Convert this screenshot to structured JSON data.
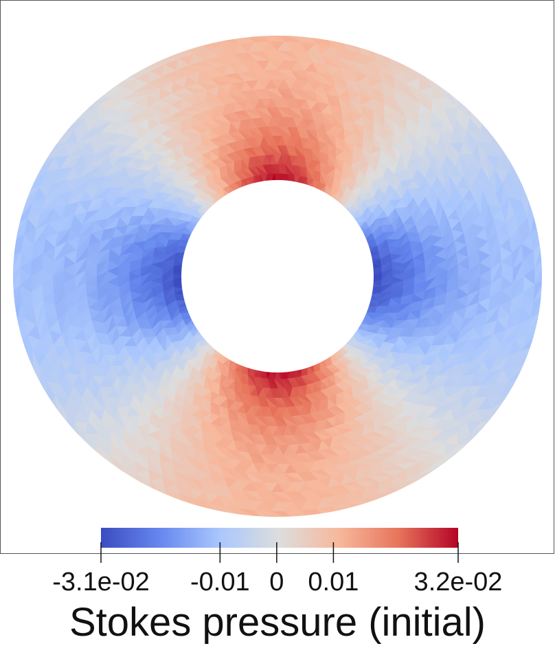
{
  "figure": {
    "field": "Stokes pressure (initial)",
    "colormap": {
      "name": "coolwarm",
      "stops": [
        "#3b4cc0",
        "#6688ee",
        "#aac7fd",
        "#dddddd",
        "#f7b89c",
        "#e7745b",
        "#b40426"
      ],
      "min": -0.031,
      "max": 0.032
    }
  },
  "colorbar": {
    "title": "Stokes pressure (initial)",
    "ticks": [
      {
        "label": "-3.1e-02",
        "value": -0.031
      },
      {
        "label": "-0.01",
        "value": -0.01
      },
      {
        "label": "0",
        "value": 0
      },
      {
        "label": "0.01",
        "value": 0.01
      },
      {
        "label": "3.2e-02",
        "value": 0.032
      }
    ]
  }
}
